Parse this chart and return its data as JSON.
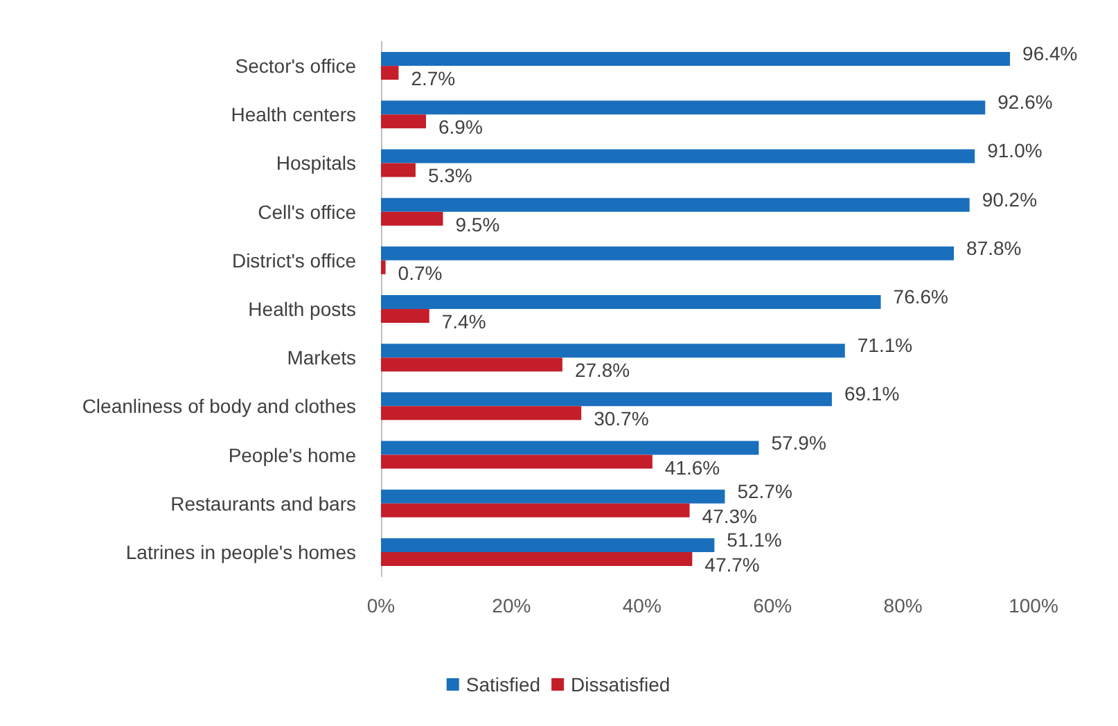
{
  "chart_data": {
    "type": "bar",
    "orientation": "horizontal",
    "categories": [
      "Sector's office",
      "Health centers",
      "Hospitals",
      "Cell's office",
      "District's office",
      "Health posts",
      "Markets",
      "Cleanliness of body and clothes",
      "People's home",
      "Restaurants and bars",
      "Latrines in people's homes"
    ],
    "series": [
      {
        "name": "Satisfied",
        "color": "#1a6fbd",
        "values": [
          96.4,
          92.6,
          91.0,
          90.2,
          87.8,
          76.6,
          71.1,
          69.1,
          57.9,
          52.7,
          51.1
        ],
        "value_labels": [
          "96.4%",
          "92.6%",
          "91.0%",
          "90.2%",
          "87.8%",
          "76.6%",
          "71.1%",
          "69.1%",
          "57.9%",
          "52.7%",
          "51.1%"
        ]
      },
      {
        "name": "Dissatisfied",
        "color": "#c41e2a",
        "values": [
          2.7,
          6.9,
          5.3,
          9.5,
          0.7,
          7.4,
          27.8,
          30.7,
          41.6,
          47.3,
          47.7
        ],
        "value_labels": [
          "2.7%",
          "6.9%",
          "5.3%",
          "9.5%",
          "0.7%",
          "7.4%",
          "27.8%",
          "30.7%",
          "41.6%",
          "47.3%",
          "47.7%"
        ]
      }
    ],
    "xlim": [
      0,
      100
    ],
    "xticks": [
      {
        "value": 0,
        "label": "0%"
      },
      {
        "value": 20,
        "label": "20%"
      },
      {
        "value": 40,
        "label": "40%"
      },
      {
        "value": 60,
        "label": "60%"
      },
      {
        "value": 80,
        "label": "80%"
      },
      {
        "value": 100,
        "label": "100%"
      }
    ],
    "grid": false,
    "legend": "bottom"
  }
}
